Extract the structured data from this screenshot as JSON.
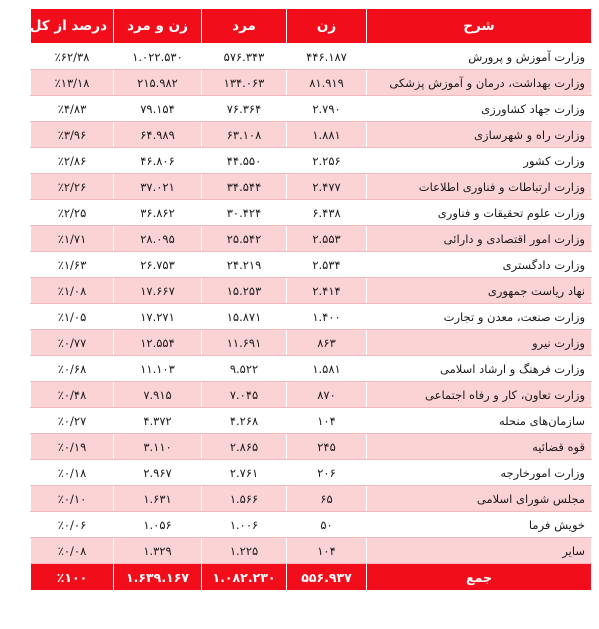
{
  "table": {
    "headers": {
      "title": "شرح",
      "women": "زن",
      "men": "مرد",
      "total": "زن و مرد",
      "percent": "درصد از کل"
    },
    "rows": [
      {
        "title": "وزارت آموزش و پرورش",
        "women": "۴۴۶.۱۸۷",
        "men": "۵۷۶.۳۴۳",
        "total": "۱.۰۲۲.۵۳۰",
        "percent": "٪۶۲/۳۸"
      },
      {
        "title": "وزارت بهداشت، درمان و آموزش پزشکی",
        "women": "۸۱.۹۱۹",
        "men": "۱۳۴.۰۶۳",
        "total": "۲۱۵.۹۸۲",
        "percent": "٪۱۳/۱۸"
      },
      {
        "title": "وزارت جهاد کشاورزی",
        "women": "۲.۷۹۰",
        "men": "۷۶.۳۶۴",
        "total": "۷۹.۱۵۴",
        "percent": "٪۴/۸۳"
      },
      {
        "title": "وزارت راه و شهرسازی",
        "women": "۱.۸۸۱",
        "men": "۶۳.۱۰۸",
        "total": "۶۴.۹۸۹",
        "percent": "٪۳/۹۶"
      },
      {
        "title": "وزارت کشور",
        "women": "۲.۲۵۶",
        "men": "۴۴.۵۵۰",
        "total": "۴۶.۸۰۶",
        "percent": "٪۲/۸۶"
      },
      {
        "title": "وزارت ارتباطات و فناوری اطلاعات",
        "women": "۲.۴۷۷",
        "men": "۳۴.۵۴۴",
        "total": "۳۷.۰۲۱",
        "percent": "٪۲/۲۶"
      },
      {
        "title": "وزارت علوم تحقیقات و فناوری",
        "women": "۶.۴۳۸",
        "men": "۳۰.۴۲۴",
        "total": "۳۶.۸۶۲",
        "percent": "٪۲/۲۵"
      },
      {
        "title": "وزارت امور اقتصادی و دارائی",
        "women": "۲.۵۵۳",
        "men": "۲۵.۵۴۲",
        "total": "۲۸.۰۹۵",
        "percent": "٪۱/۷۱"
      },
      {
        "title": "وزارت دادگستری",
        "women": "۲.۵۳۴",
        "men": "۲۴.۲۱۹",
        "total": "۲۶.۷۵۳",
        "percent": "٪۱/۶۳"
      },
      {
        "title": "نهاد ریاست جمهوری",
        "women": "۲.۴۱۴",
        "men": "۱۵.۲۵۳",
        "total": "۱۷.۶۶۷",
        "percent": "٪۱/۰۸"
      },
      {
        "title": "وزارت صنعت، معدن و تجارت",
        "women": "۱.۴۰۰",
        "men": "۱۵.۸۷۱",
        "total": "۱۷.۲۷۱",
        "percent": "٪۱/۰۵"
      },
      {
        "title": "وزارت نیرو",
        "women": "۸۶۳",
        "men": "۱۱.۶۹۱",
        "total": "۱۲.۵۵۴",
        "percent": "٪۰/۷۷"
      },
      {
        "title": "وزارت فرهنگ و ارشاد اسلامی",
        "women": "۱.۵۸۱",
        "men": "۹.۵۲۲",
        "total": "۱۱.۱۰۳",
        "percent": "٪۰/۶۸"
      },
      {
        "title": "وزارت تعاون، کار و رفاه اجتماعی",
        "women": "۸۷۰",
        "men": "۷.۰۴۵",
        "total": "۷.۹۱۵",
        "percent": "٪۰/۴۸"
      },
      {
        "title": "سازمان‌های منحله",
        "women": "۱۰۴",
        "men": "۴.۲۶۸",
        "total": "۴.۳۷۲",
        "percent": "٪۰/۲۷"
      },
      {
        "title": "قوه قضائیه",
        "women": "۲۴۵",
        "men": "۲.۸۶۵",
        "total": "۳.۱۱۰",
        "percent": "٪۰/۱۹"
      },
      {
        "title": "وزارت امورخارجه",
        "women": "۲۰۶",
        "men": "۲.۷۶۱",
        "total": "۲.۹۶۷",
        "percent": "٪۰/۱۸"
      },
      {
        "title": "مجلس شورای اسلامی",
        "women": "۶۵",
        "men": "۱.۵۶۶",
        "total": "۱.۶۳۱",
        "percent": "٪۰/۱۰"
      },
      {
        "title": "خویش فرما",
        "women": "۵۰",
        "men": "۱.۰۰۶",
        "total": "۱.۰۵۶",
        "percent": "٪۰/۰۶"
      },
      {
        "title": "سایر",
        "women": "۱۰۴",
        "men": "۱.۲۲۵",
        "total": "۱.۳۲۹",
        "percent": "٪۰/۰۸"
      }
    ],
    "footer": {
      "title": "جمع",
      "women": "۵۵۶.۹۳۷",
      "men": "۱.۰۸۲.۲۳۰",
      "total": "۱.۶۳۹.۱۶۷",
      "percent": "٪۱۰۰"
    }
  },
  "colors": {
    "header_bg": "#f20d1b",
    "stripe_bg": "#fbd3d5"
  }
}
